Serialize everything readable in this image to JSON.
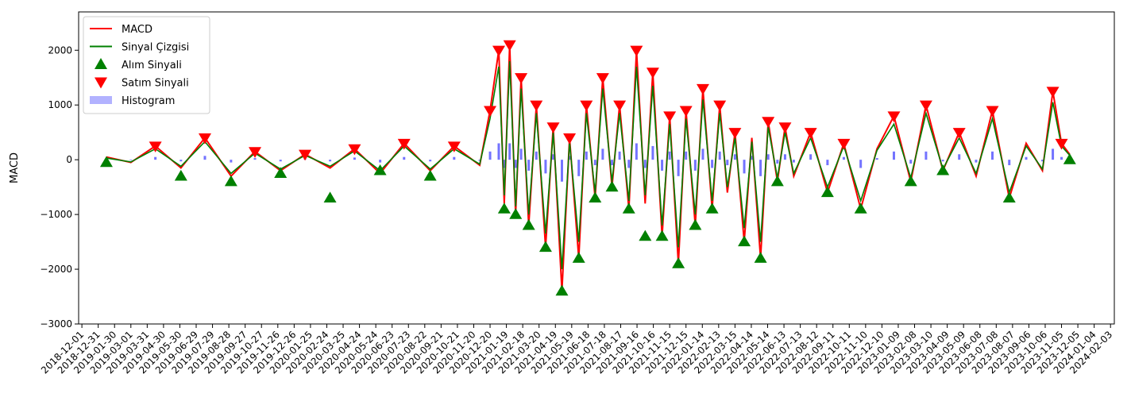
{
  "chart_data": {
    "type": "line",
    "title": "",
    "xlabel": "",
    "ylabel": "MACD",
    "ylim": [
      -3000,
      2700
    ],
    "yticks": [
      2000,
      1000,
      0,
      -1000,
      -2000,
      -3000
    ],
    "ytick_labels": [
      "2000",
      "1000",
      "0",
      "−1000",
      "−2000",
      "−3000"
    ],
    "xlim": [
      "2018-11-25",
      "2024-02-10"
    ],
    "xtick_labels": [
      "2018-12-01",
      "2018-12-31",
      "2019-01-30",
      "2019-03-01",
      "2019-03-31",
      "2019-04-30",
      "2019-05-30",
      "2019-06-29",
      "2019-07-29",
      "2019-08-28",
      "2019-09-27",
      "2019-10-27",
      "2019-11-26",
      "2019-12-26",
      "2020-01-25",
      "2020-02-24",
      "2020-03-25",
      "2020-04-24",
      "2020-05-24",
      "2020-06-23",
      "2020-07-23",
      "2020-08-22",
      "2020-09-21",
      "2020-10-21",
      "2020-11-20",
      "2020-12-20",
      "2021-01-19",
      "2021-02-18",
      "2021-03-20",
      "2021-04-19",
      "2021-05-19",
      "2021-06-18",
      "2021-07-18",
      "2021-08-17",
      "2021-09-16",
      "2021-10-16",
      "2021-11-15",
      "2021-12-15",
      "2022-01-14",
      "2022-02-13",
      "2022-03-15",
      "2022-04-14",
      "2022-05-14",
      "2022-06-13",
      "2022-07-13",
      "2022-08-12",
      "2022-09-11",
      "2022-10-11",
      "2022-11-10",
      "2022-12-10",
      "2023-01-09",
      "2023-02-08",
      "2023-03-10",
      "2023-04-09",
      "2023-05-09",
      "2023-06-08",
      "2023-07-08",
      "2023-08-07",
      "2023-09-06",
      "2023-10-06",
      "2023-11-05",
      "2023-12-05",
      "2024-01-04",
      "2024-02-03"
    ],
    "legend_position": "top-left",
    "grid": false,
    "legend": [
      {
        "label": "MACD",
        "kind": "line",
        "color": "#ff0000"
      },
      {
        "label": "Sinyal Çizgisi",
        "kind": "line",
        "color": "#008000"
      },
      {
        "label": "Alım Sinyali",
        "kind": "marker-up",
        "color": "#008000"
      },
      {
        "label": "Satım Sinyali",
        "kind": "marker-down",
        "color": "#ff0000"
      },
      {
        "label": "Histogram",
        "kind": "patch",
        "color": "#0000ff"
      }
    ],
    "series": [
      {
        "name": "MACD",
        "color": "#ff0000",
        "x": [
          "2019-01-15",
          "2019-03-01",
          "2019-04-15",
          "2019-06-01",
          "2019-07-15",
          "2019-09-01",
          "2019-10-15",
          "2019-12-01",
          "2020-01-15",
          "2020-03-01",
          "2020-04-15",
          "2020-06-01",
          "2020-07-15",
          "2020-09-01",
          "2020-10-15",
          "2020-12-01",
          "2020-12-20",
          "2021-01-05",
          "2021-01-15",
          "2021-01-25",
          "2021-02-05",
          "2021-02-15",
          "2021-03-01",
          "2021-03-15",
          "2021-04-01",
          "2021-04-15",
          "2021-05-01",
          "2021-05-15",
          "2021-06-01",
          "2021-06-15",
          "2021-07-01",
          "2021-07-15",
          "2021-08-01",
          "2021-08-15",
          "2021-09-01",
          "2021-09-15",
          "2021-10-01",
          "2021-10-15",
          "2021-11-01",
          "2021-11-15",
          "2021-12-01",
          "2021-12-15",
          "2022-01-01",
          "2022-01-15",
          "2022-02-01",
          "2022-02-15",
          "2022-03-01",
          "2022-03-15",
          "2022-04-01",
          "2022-04-15",
          "2022-05-01",
          "2022-05-15",
          "2022-06-01",
          "2022-06-15",
          "2022-07-01",
          "2022-08-01",
          "2022-09-01",
          "2022-10-01",
          "2022-11-01",
          "2022-12-01",
          "2023-01-01",
          "2023-02-01",
          "2023-03-01",
          "2023-04-01",
          "2023-05-01",
          "2023-06-01",
          "2023-07-01",
          "2023-08-01",
          "2023-09-01",
          "2023-10-01",
          "2023-10-20",
          "2023-11-05",
          "2023-11-20"
        ],
        "values": [
          50,
          -50,
          250,
          -150,
          400,
          -300,
          150,
          -200,
          100,
          -150,
          200,
          -250,
          300,
          -200,
          250,
          -100,
          900,
          2000,
          -800,
          2100,
          -1000,
          1500,
          -1200,
          1000,
          -1600,
          600,
          -2400,
          400,
          -1800,
          1000,
          -700,
          1500,
          -500,
          1000,
          -900,
          2000,
          -800,
          1600,
          -1400,
          800,
          -1900,
          900,
          -1200,
          1300,
          -900,
          1000,
          -600,
          500,
          -1500,
          400,
          -1800,
          700,
          -400,
          600,
          -300,
          500,
          -600,
          300,
          -900,
          200,
          800,
          -400,
          1000,
          -200,
          500,
          -300,
          900,
          -700,
          300,
          -200,
          1250,
          300,
          100
        ]
      },
      {
        "name": "Sinyal Çizgisi",
        "color": "#008000",
        "x": [
          "2019-01-15",
          "2019-03-01",
          "2019-04-15",
          "2019-06-01",
          "2019-07-15",
          "2019-09-01",
          "2019-10-15",
          "2019-12-01",
          "2020-01-15",
          "2020-03-01",
          "2020-04-15",
          "2020-06-01",
          "2020-07-15",
          "2020-09-01",
          "2020-10-15",
          "2020-12-01",
          "2020-12-20",
          "2021-01-05",
          "2021-01-15",
          "2021-01-25",
          "2021-02-05",
          "2021-02-15",
          "2021-03-01",
          "2021-03-15",
          "2021-04-01",
          "2021-04-15",
          "2021-05-01",
          "2021-05-15",
          "2021-06-01",
          "2021-06-15",
          "2021-07-01",
          "2021-07-15",
          "2021-08-01",
          "2021-08-15",
          "2021-09-01",
          "2021-09-15",
          "2021-10-01",
          "2021-10-15",
          "2021-11-01",
          "2021-11-15",
          "2021-12-01",
          "2021-12-15",
          "2022-01-01",
          "2022-01-15",
          "2022-02-01",
          "2022-02-15",
          "2022-03-01",
          "2022-03-15",
          "2022-04-01",
          "2022-04-15",
          "2022-05-01",
          "2022-05-15",
          "2022-06-01",
          "2022-06-15",
          "2022-07-01",
          "2022-08-01",
          "2022-09-01",
          "2022-10-01",
          "2022-11-01",
          "2022-12-01",
          "2023-01-01",
          "2023-02-01",
          "2023-03-01",
          "2023-04-01",
          "2023-05-01",
          "2023-06-01",
          "2023-07-01",
          "2023-08-01",
          "2023-09-01",
          "2023-10-01",
          "2023-10-20",
          "2023-11-05",
          "2023-11-20"
        ],
        "values": [
          30,
          -40,
          200,
          -120,
          330,
          -250,
          120,
          -170,
          80,
          -120,
          160,
          -200,
          250,
          -170,
          200,
          -80,
          750,
          1700,
          -650,
          1800,
          -850,
          1300,
          -1000,
          850,
          -1350,
          500,
          -2000,
          330,
          -1500,
          850,
          -600,
          1300,
          -400,
          850,
          -750,
          1700,
          -650,
          1350,
          -1200,
          650,
          -1600,
          750,
          -1000,
          1100,
          -750,
          850,
          -500,
          400,
          -1250,
          330,
          -1500,
          600,
          -330,
          500,
          -250,
          400,
          -500,
          250,
          -750,
          170,
          650,
          -330,
          850,
          -170,
          400,
          -250,
          750,
          -600,
          250,
          -170,
          1050,
          250,
          80
        ]
      },
      {
        "name": "Histogram",
        "color": "#0000ff"
      }
    ],
    "buy_signals": {
      "name": "Alım Sinyali",
      "x": [
        "2019-01-15",
        "2019-06-01",
        "2019-09-01",
        "2019-12-01",
        "2020-03-01",
        "2020-06-01",
        "2020-09-01",
        "2021-01-15",
        "2021-02-05",
        "2021-03-01",
        "2021-04-01",
        "2021-05-01",
        "2021-06-01",
        "2021-07-01",
        "2021-08-01",
        "2021-09-01",
        "2021-10-01",
        "2021-11-01",
        "2021-12-01",
        "2022-01-01",
        "2022-02-01",
        "2022-04-01",
        "2022-05-01",
        "2022-06-01",
        "2022-09-01",
        "2022-11-01",
        "2023-02-01",
        "2023-04-01",
        "2023-08-01",
        "2023-11-20"
      ],
      "values": [
        -50,
        -300,
        -400,
        -250,
        -700,
        -200,
        -300,
        -900,
        -1000,
        -1200,
        -1600,
        -2400,
        -1800,
        -700,
        -500,
        -900,
        -1400,
        -1400,
        -1900,
        -1200,
        -900,
        -1500,
        -1800,
        -400,
        -600,
        -900,
        -400,
        -200,
        -700,
        0
      ]
    },
    "sell_signals": {
      "name": "Satım Sinyali",
      "x": [
        "2019-04-15",
        "2019-07-15",
        "2019-10-15",
        "2020-01-15",
        "2020-04-15",
        "2020-07-15",
        "2020-10-15",
        "2020-12-20",
        "2021-01-05",
        "2021-01-25",
        "2021-02-15",
        "2021-03-15",
        "2021-04-15",
        "2021-05-15",
        "2021-06-15",
        "2021-07-15",
        "2021-08-15",
        "2021-09-15",
        "2021-10-15",
        "2021-11-15",
        "2021-12-15",
        "2022-01-15",
        "2022-02-15",
        "2022-03-15",
        "2022-05-15",
        "2022-06-15",
        "2022-08-01",
        "2022-10-01",
        "2023-01-01",
        "2023-03-01",
        "2023-05-01",
        "2023-07-01",
        "2023-10-20",
        "2023-11-05"
      ],
      "values": [
        250,
        400,
        150,
        100,
        200,
        300,
        250,
        900,
        2000,
        2100,
        1500,
        1000,
        600,
        400,
        1000,
        1500,
        1000,
        2000,
        1600,
        800,
        900,
        1300,
        1000,
        500,
        700,
        600,
        500,
        300,
        800,
        1000,
        500,
        900,
        1250,
        300
      ]
    }
  }
}
